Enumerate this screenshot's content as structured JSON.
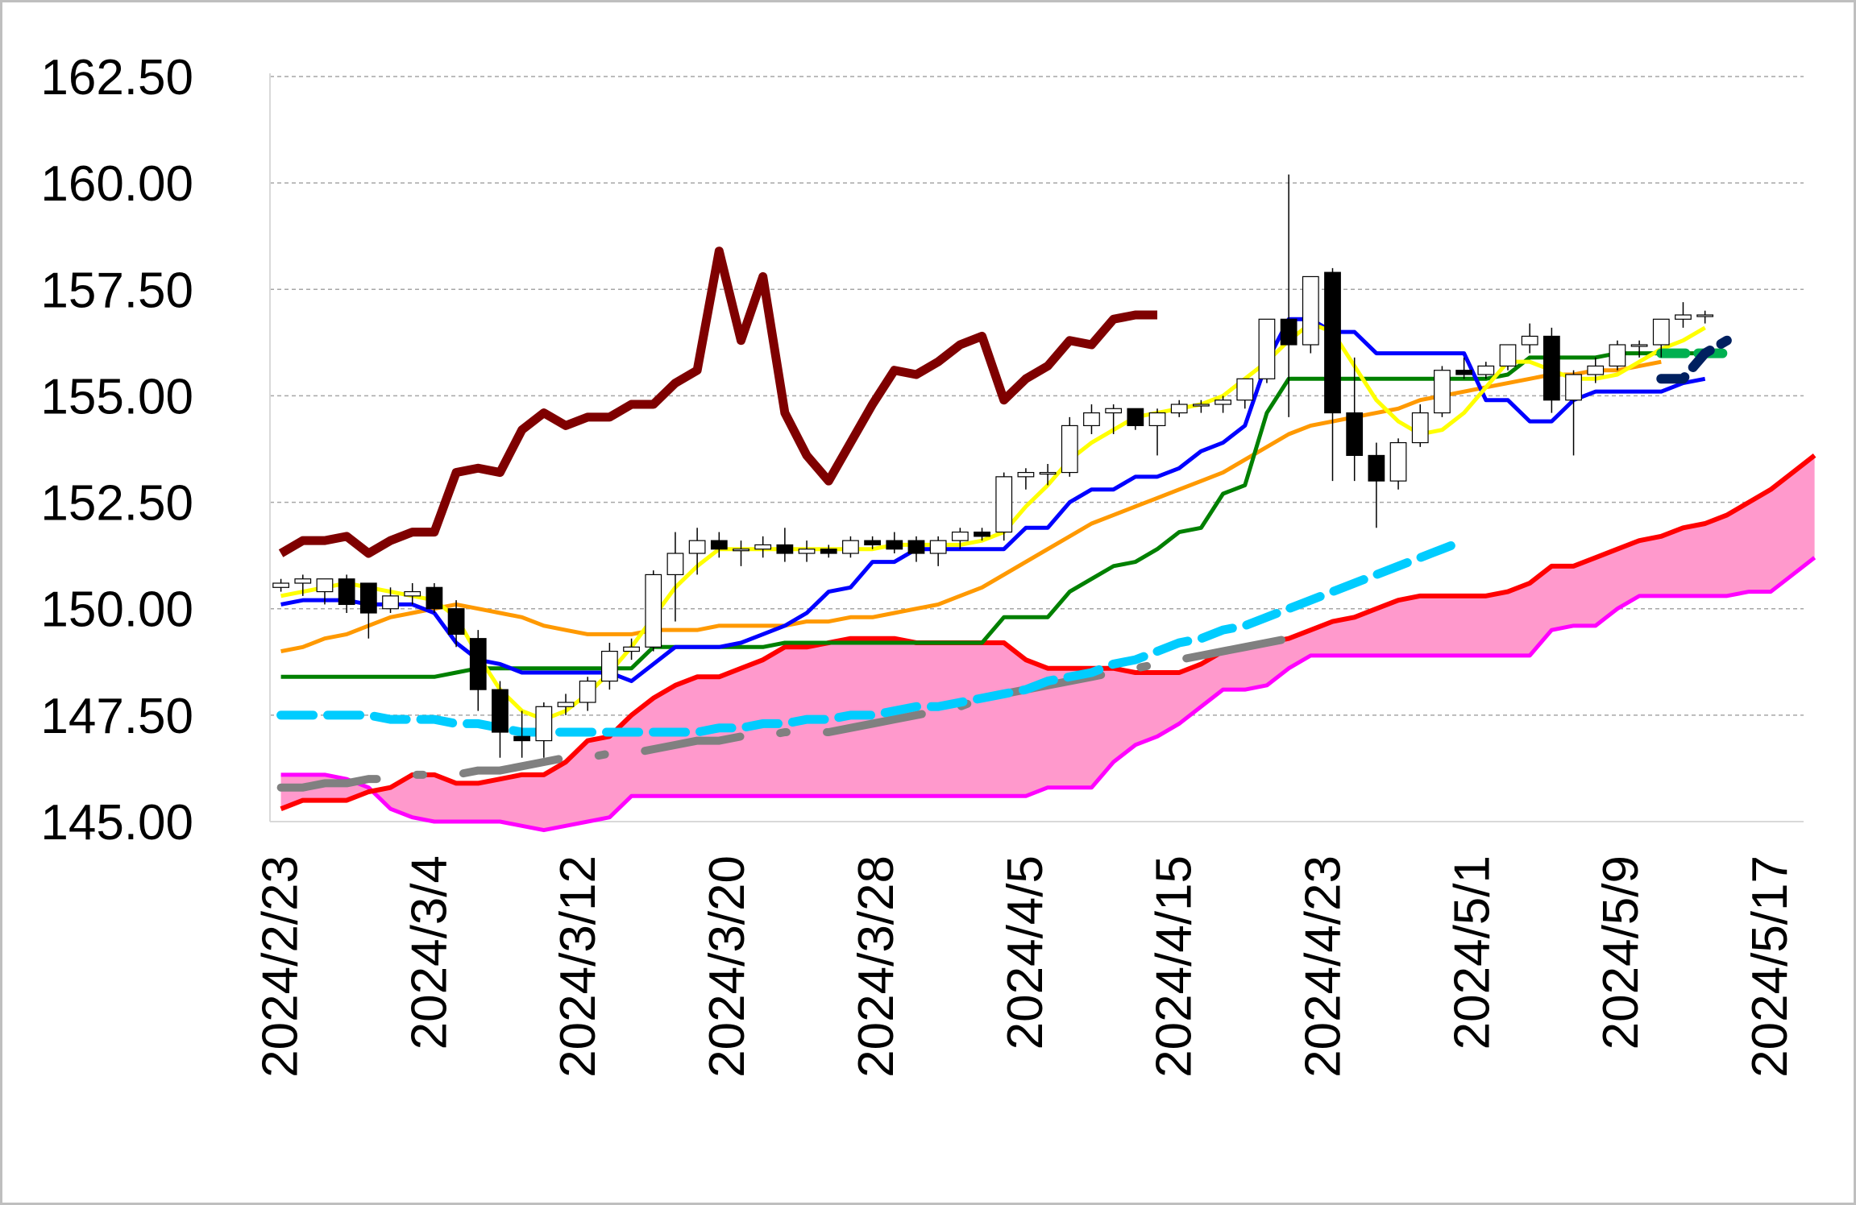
{
  "chart_data": {
    "type": "line",
    "title": "",
    "xlabel": "",
    "ylabel": "",
    "ylim": [
      145.0,
      162.5
    ],
    "yticks": [
      "162.50",
      "160.00",
      "157.50",
      "155.00",
      "152.50",
      "150.00",
      "147.50",
      "145.00"
    ],
    "xticks": [
      "2024/2/23",
      "2024/3/4",
      "2024/3/12",
      "2024/3/20",
      "2024/3/28",
      "2024/4/5",
      "2024/4/15",
      "2024/4/23",
      "2024/5/1",
      "2024/5/9",
      "2024/5/17"
    ],
    "grid": true,
    "legend": "none",
    "colors": {
      "cloud": "#ff99cc",
      "tenkan": "#0000ff",
      "kijun": "#008000",
      "senkou_a": "#ff0000",
      "senkou_b": "#ff00ff",
      "chikou": "#7f0000",
      "ma_short": "#ffff00",
      "ma_long": "#ff9900",
      "dash_cyan": "#00ccff",
      "dashdot_gray": "#808080",
      "kijun_ext": "#00b050",
      "tenkan_ext": "#002060",
      "candle_up": "#ffffff",
      "candle_down": "#000000"
    },
    "candles": [
      {
        "x": "2024/2/23",
        "o": 150.5,
        "h": 150.7,
        "l": 150.4,
        "c": 150.6
      },
      {
        "x": "2024/2/26",
        "o": 150.6,
        "h": 150.8,
        "l": 150.3,
        "c": 150.7
      },
      {
        "x": "2024/2/27",
        "o": 150.4,
        "h": 150.7,
        "l": 150.1,
        "c": 150.7
      },
      {
        "x": "2024/2/28",
        "o": 150.7,
        "h": 150.8,
        "l": 149.9,
        "c": 150.1
      },
      {
        "x": "2024/2/29",
        "o": 150.6,
        "h": 150.6,
        "l": 149.3,
        "c": 149.9
      },
      {
        "x": "2024/3/1",
        "o": 150.0,
        "h": 150.5,
        "l": 149.9,
        "c": 150.3
      },
      {
        "x": "2024/3/4",
        "o": 150.3,
        "h": 150.6,
        "l": 150.1,
        "c": 150.4
      },
      {
        "x": "2024/3/5",
        "o": 150.5,
        "h": 150.6,
        "l": 149.9,
        "c": 150.0
      },
      {
        "x": "2024/3/6",
        "o": 150.0,
        "h": 150.2,
        "l": 149.1,
        "c": 149.4
      },
      {
        "x": "2024/3/7",
        "o": 149.3,
        "h": 149.5,
        "l": 147.6,
        "c": 148.1
      },
      {
        "x": "2024/3/8",
        "o": 148.1,
        "h": 148.3,
        "l": 146.5,
        "c": 147.1
      },
      {
        "x": "2024/3/11",
        "o": 147.0,
        "h": 147.6,
        "l": 146.5,
        "c": 146.9
      },
      {
        "x": "2024/3/12",
        "o": 146.9,
        "h": 147.8,
        "l": 146.5,
        "c": 147.7
      },
      {
        "x": "2024/3/13",
        "o": 147.7,
        "h": 148.0,
        "l": 147.5,
        "c": 147.8
      },
      {
        "x": "2024/3/14",
        "o": 147.8,
        "h": 148.4,
        "l": 147.6,
        "c": 148.3
      },
      {
        "x": "2024/3/15",
        "o": 148.3,
        "h": 149.2,
        "l": 148.1,
        "c": 149.0
      },
      {
        "x": "2024/3/18",
        "o": 149.0,
        "h": 149.3,
        "l": 148.8,
        "c": 149.1
      },
      {
        "x": "2024/3/19",
        "o": 149.1,
        "h": 150.9,
        "l": 149.0,
        "c": 150.8
      },
      {
        "x": "2024/3/20",
        "o": 150.8,
        "h": 151.8,
        "l": 149.7,
        "c": 151.3
      },
      {
        "x": "2024/3/21",
        "o": 151.3,
        "h": 151.9,
        "l": 150.8,
        "c": 151.6
      },
      {
        "x": "2024/3/22",
        "o": 151.6,
        "h": 151.8,
        "l": 151.2,
        "c": 151.4
      },
      {
        "x": "2024/3/25",
        "o": 151.4,
        "h": 151.6,
        "l": 151.0,
        "c": 151.4
      },
      {
        "x": "2024/3/26",
        "o": 151.4,
        "h": 151.7,
        "l": 151.2,
        "c": 151.5
      },
      {
        "x": "2024/3/27",
        "o": 151.5,
        "h": 151.9,
        "l": 151.1,
        "c": 151.3
      },
      {
        "x": "2024/3/28",
        "o": 151.3,
        "h": 151.6,
        "l": 151.1,
        "c": 151.4
      },
      {
        "x": "2024/3/29",
        "o": 151.4,
        "h": 151.5,
        "l": 151.2,
        "c": 151.3
      },
      {
        "x": "2024/4/1",
        "o": 151.3,
        "h": 151.7,
        "l": 151.2,
        "c": 151.6
      },
      {
        "x": "2024/4/2",
        "o": 151.6,
        "h": 151.7,
        "l": 151.4,
        "c": 151.5
      },
      {
        "x": "2024/4/3",
        "o": 151.6,
        "h": 151.8,
        "l": 151.3,
        "c": 151.4
      },
      {
        "x": "2024/4/4",
        "o": 151.6,
        "h": 151.7,
        "l": 151.1,
        "c": 151.3
      },
      {
        "x": "2024/4/5",
        "o": 151.3,
        "h": 151.7,
        "l": 151.0,
        "c": 151.6
      },
      {
        "x": "2024/4/8",
        "o": 151.6,
        "h": 151.9,
        "l": 151.4,
        "c": 151.8
      },
      {
        "x": "2024/4/9",
        "o": 151.8,
        "h": 151.9,
        "l": 151.6,
        "c": 151.7
      },
      {
        "x": "2024/4/10",
        "o": 151.8,
        "h": 153.2,
        "l": 151.6,
        "c": 153.1
      },
      {
        "x": "2024/4/11",
        "o": 153.1,
        "h": 153.3,
        "l": 152.8,
        "c": 153.2
      },
      {
        "x": "2024/4/12",
        "o": 153.2,
        "h": 153.4,
        "l": 152.9,
        "c": 153.2
      },
      {
        "x": "2024/4/15",
        "o": 153.2,
        "h": 154.5,
        "l": 153.1,
        "c": 154.3
      },
      {
        "x": "2024/4/16",
        "o": 154.3,
        "h": 154.8,
        "l": 154.1,
        "c": 154.6
      },
      {
        "x": "2024/4/17",
        "o": 154.6,
        "h": 154.8,
        "l": 154.1,
        "c": 154.7
      },
      {
        "x": "2024/4/18",
        "o": 154.7,
        "h": 154.7,
        "l": 154.2,
        "c": 154.3
      },
      {
        "x": "2024/4/19",
        "o": 154.3,
        "h": 154.7,
        "l": 153.6,
        "c": 154.6
      },
      {
        "x": "2024/4/22",
        "o": 154.6,
        "h": 154.9,
        "l": 154.5,
        "c": 154.8
      },
      {
        "x": "2024/4/23",
        "o": 154.8,
        "h": 154.9,
        "l": 154.6,
        "c": 154.8
      },
      {
        "x": "2024/4/24",
        "o": 154.8,
        "h": 155.0,
        "l": 154.6,
        "c": 154.9
      },
      {
        "x": "2024/4/25",
        "o": 154.9,
        "h": 155.4,
        "l": 154.7,
        "c": 155.4
      },
      {
        "x": "2024/4/26",
        "o": 155.4,
        "h": 156.8,
        "l": 155.3,
        "c": 156.8
      },
      {
        "x": "2024/4/29",
        "o": 156.8,
        "h": 160.2,
        "l": 154.5,
        "c": 156.2
      },
      {
        "x": "2024/4/30",
        "o": 156.2,
        "h": 157.8,
        "l": 156.0,
        "c": 157.8
      },
      {
        "x": "2024/5/1",
        "o": 157.9,
        "h": 158.0,
        "l": 153.0,
        "c": 154.6
      },
      {
        "x": "2024/5/2",
        "o": 154.6,
        "h": 155.9,
        "l": 153.0,
        "c": 153.6
      },
      {
        "x": "2024/5/3",
        "o": 153.6,
        "h": 153.9,
        "l": 151.9,
        "c": 153.0
      },
      {
        "x": "2024/5/6",
        "o": 153.0,
        "h": 154.0,
        "l": 152.8,
        "c": 153.9
      },
      {
        "x": "2024/5/7",
        "o": 153.9,
        "h": 154.8,
        "l": 153.8,
        "c": 154.6
      },
      {
        "x": "2024/5/8",
        "o": 154.6,
        "h": 155.7,
        "l": 154.5,
        "c": 155.6
      },
      {
        "x": "2024/5/9",
        "o": 155.6,
        "h": 155.9,
        "l": 155.4,
        "c": 155.5
      },
      {
        "x": "2024/5/10",
        "o": 155.5,
        "h": 155.8,
        "l": 155.4,
        "c": 155.7
      },
      {
        "x": "2024/5/13",
        "o": 155.7,
        "h": 156.2,
        "l": 155.6,
        "c": 156.2
      },
      {
        "x": "2024/5/14",
        "o": 156.2,
        "h": 156.7,
        "l": 156.0,
        "c": 156.4
      },
      {
        "x": "2024/5/15",
        "o": 156.4,
        "h": 156.6,
        "l": 154.6,
        "c": 154.9
      },
      {
        "x": "2024/5/16",
        "o": 154.9,
        "h": 155.6,
        "l": 153.6,
        "c": 155.5
      },
      {
        "x": "2024/5/17",
        "o": 155.5,
        "h": 155.9,
        "l": 155.3,
        "c": 155.7
      },
      {
        "x": "2024/5/20",
        "o": 155.7,
        "h": 156.3,
        "l": 155.6,
        "c": 156.2
      },
      {
        "x": "2024/5/21",
        "o": 156.2,
        "h": 156.3,
        "l": 155.9,
        "c": 156.2
      },
      {
        "x": "2024/5/22",
        "o": 156.2,
        "h": 156.8,
        "l": 155.9,
        "c": 156.8
      },
      {
        "x": "2024/5/23",
        "o": 156.8,
        "h": 157.2,
        "l": 156.6,
        "c": 156.9
      },
      {
        "x": "2024/5/24",
        "o": 156.9,
        "h": 157.0,
        "l": 156.7,
        "c": 156.9
      }
    ],
    "series": [
      {
        "key": "senkou_a",
        "style": "solid",
        "values": [
          145.3,
          145.5,
          145.5,
          145.5,
          145.7,
          145.8,
          146.1,
          146.1,
          145.9,
          145.9,
          146.0,
          146.1,
          146.1,
          146.4,
          146.9,
          147.0,
          147.5,
          147.9,
          148.2,
          148.4,
          148.4,
          148.6,
          148.8,
          149.1,
          149.1,
          149.2,
          149.3,
          149.3,
          149.3,
          149.2,
          149.2,
          149.2,
          149.2,
          149.2,
          148.8,
          148.6,
          148.6,
          148.6,
          148.6,
          148.5,
          148.5,
          148.5,
          148.7,
          149.0,
          149.1,
          149.2,
          149.3,
          149.5,
          149.7,
          149.8,
          150.0,
          150.2,
          150.3,
          150.3,
          150.3,
          150.3,
          150.4,
          150.6,
          151.0,
          151.0,
          151.2,
          151.4,
          151.6,
          151.7,
          151.9,
          152.0,
          152.2,
          152.5,
          152.8,
          153.2,
          153.6
        ]
      },
      {
        "key": "senkou_b",
        "style": "solid",
        "values": [
          146.1,
          146.1,
          146.1,
          146.0,
          145.8,
          145.3,
          145.1,
          145.0,
          145.0,
          145.0,
          145.0,
          144.9,
          144.8,
          144.9,
          145.0,
          145.1,
          145.6,
          145.6,
          145.6,
          145.6,
          145.6,
          145.6,
          145.6,
          145.6,
          145.6,
          145.6,
          145.6,
          145.6,
          145.6,
          145.6,
          145.6,
          145.6,
          145.6,
          145.6,
          145.6,
          145.8,
          145.8,
          145.8,
          146.4,
          146.8,
          147.0,
          147.3,
          147.7,
          148.1,
          148.1,
          148.2,
          148.6,
          148.9,
          148.9,
          148.9,
          148.9,
          148.9,
          148.9,
          148.9,
          148.9,
          148.9,
          148.9,
          148.9,
          149.5,
          149.6,
          149.6,
          150.0,
          150.3,
          150.3,
          150.3,
          150.3,
          150.3,
          150.4,
          150.4,
          150.8,
          151.2
        ]
      },
      {
        "key": "tenkan",
        "style": "solid",
        "values": [
          150.1,
          150.2,
          150.2,
          150.2,
          150.1,
          150.1,
          150.1,
          149.9,
          149.2,
          148.8,
          148.7,
          148.5,
          148.5,
          148.5,
          148.5,
          148.5,
          148.3,
          148.7,
          149.1,
          149.1,
          149.1,
          149.2,
          149.4,
          149.6,
          149.9,
          150.4,
          150.5,
          151.1,
          151.1,
          151.4,
          151.4,
          151.4,
          151.4,
          151.4,
          151.9,
          151.9,
          152.5,
          152.8,
          152.8,
          153.1,
          153.1,
          153.3,
          153.7,
          153.9,
          154.3,
          155.8,
          156.8,
          156.8,
          156.5,
          156.5,
          156.0,
          156.0,
          156.0,
          156.0,
          156.0,
          154.9,
          154.9,
          154.4,
          154.4,
          154.9,
          155.1,
          155.1,
          155.1,
          155.1,
          155.3,
          155.4
        ]
      },
      {
        "key": "kijun",
        "style": "solid",
        "values": [
          148.4,
          148.4,
          148.4,
          148.4,
          148.4,
          148.4,
          148.4,
          148.4,
          148.5,
          148.6,
          148.6,
          148.6,
          148.6,
          148.6,
          148.6,
          148.6,
          148.6,
          149.1,
          149.1,
          149.1,
          149.1,
          149.1,
          149.1,
          149.2,
          149.2,
          149.2,
          149.2,
          149.2,
          149.2,
          149.2,
          149.2,
          149.2,
          149.2,
          149.8,
          149.8,
          149.8,
          150.4,
          150.7,
          151.0,
          151.1,
          151.4,
          151.8,
          151.9,
          152.7,
          152.9,
          154.6,
          155.4,
          155.4,
          155.4,
          155.4,
          155.4,
          155.4,
          155.4,
          155.4,
          155.4,
          155.4,
          155.5,
          155.9,
          155.9,
          155.9,
          155.9,
          156.0,
          156.0,
          156.0,
          156.0,
          156.0
        ]
      },
      {
        "key": "ma_short",
        "style": "solid",
        "values": [
          150.3,
          150.4,
          150.5,
          150.6,
          150.5,
          150.4,
          150.3,
          150.2,
          149.8,
          148.9,
          148.1,
          147.6,
          147.4,
          147.6,
          148.0,
          148.5,
          149.1,
          149.8,
          150.5,
          151.0,
          151.4,
          151.4,
          151.4,
          151.4,
          151.4,
          151.4,
          151.4,
          151.4,
          151.5,
          151.5,
          151.5,
          151.5,
          151.6,
          151.8,
          152.4,
          152.9,
          153.5,
          153.9,
          154.2,
          154.5,
          154.6,
          154.7,
          154.8,
          155.0,
          155.4,
          155.8,
          156.3,
          156.7,
          156.5,
          155.7,
          154.9,
          154.4,
          154.1,
          154.2,
          154.6,
          155.2,
          155.8,
          155.8,
          155.6,
          155.4,
          155.4,
          155.5,
          155.8,
          156.1,
          156.3,
          156.6
        ]
      },
      {
        "key": "ma_long",
        "style": "solid",
        "values": [
          149.0,
          149.1,
          149.3,
          149.4,
          149.6,
          149.8,
          149.9,
          150.0,
          150.1,
          150.0,
          149.9,
          149.8,
          149.6,
          149.5,
          149.4,
          149.4,
          149.4,
          149.5,
          149.5,
          149.5,
          149.6,
          149.6,
          149.6,
          149.6,
          149.7,
          149.7,
          149.8,
          149.8,
          149.9,
          150.0,
          150.1,
          150.3,
          150.5,
          150.8,
          151.1,
          151.4,
          151.7,
          152.0,
          152.2,
          152.4,
          152.6,
          152.8,
          153.0,
          153.2,
          153.5,
          153.8,
          154.1,
          154.3,
          154.4,
          154.5,
          154.6,
          154.7,
          154.9,
          155.0,
          155.1,
          155.2,
          155.3,
          155.4,
          155.5,
          155.5,
          155.6,
          155.6,
          155.7,
          155.8
        ]
      },
      {
        "key": "chikou",
        "style": "solid",
        "values": [
          151.3,
          151.6,
          151.6,
          151.7,
          151.3,
          151.6,
          151.8,
          151.8,
          153.2,
          153.3,
          153.2,
          154.2,
          154.6,
          154.3,
          154.5,
          154.5,
          154.8,
          154.8,
          155.3,
          155.6,
          158.4,
          156.3,
          157.8,
          154.6,
          153.6,
          153.0,
          153.9,
          154.8,
          155.6,
          155.5,
          155.8,
          156.2,
          156.4,
          154.9,
          155.4,
          155.7,
          156.3,
          156.2,
          156.8,
          156.9,
          156.9
        ]
      },
      {
        "key": "dash_cyan",
        "style": "dash",
        "values": [
          147.5,
          147.5,
          147.5,
          147.5,
          147.5,
          147.4,
          147.4,
          147.4,
          147.3,
          147.3,
          147.2,
          147.1,
          147.1,
          147.1,
          147.1,
          147.1,
          147.1,
          147.1,
          147.1,
          147.1,
          147.2,
          147.2,
          147.3,
          147.3,
          147.4,
          147.4,
          147.5,
          147.5,
          147.6,
          147.7,
          147.7,
          147.8,
          147.9,
          148.0,
          148.1,
          148.3,
          148.4,
          148.5,
          148.7,
          148.8,
          149.0,
          149.2,
          149.3,
          149.5,
          149.6,
          149.8,
          150.0,
          150.2,
          150.4,
          150.6,
          150.8,
          151.0,
          151.2,
          151.4,
          151.6
        ]
      },
      {
        "key": "dashdot_gray",
        "style": "dashdot",
        "values": [
          145.8,
          145.8,
          145.9,
          145.9,
          146.0,
          146.0,
          146.1,
          146.1,
          146.1,
          146.2,
          146.2,
          146.3,
          146.4,
          146.5,
          146.5,
          146.6,
          146.6,
          146.7,
          146.8,
          146.9,
          146.9,
          147.0,
          147.0,
          147.1,
          147.1,
          147.1,
          147.2,
          147.3,
          147.4,
          147.5,
          147.6,
          147.7,
          147.9,
          148.0,
          148.1,
          148.2,
          148.3,
          148.4,
          148.5,
          148.6,
          148.7,
          148.8,
          148.9,
          149.0,
          149.1,
          149.2,
          149.3
        ]
      },
      {
        "key": "kijun_ext",
        "style": "dash",
        "offset": 63,
        "values": [
          156.0,
          156.0,
          156.0,
          156.0
        ]
      },
      {
        "key": "tenkan_ext",
        "style": "dash",
        "offset": 63,
        "values": [
          155.4,
          155.4,
          156.0,
          156.3
        ]
      }
    ]
  }
}
